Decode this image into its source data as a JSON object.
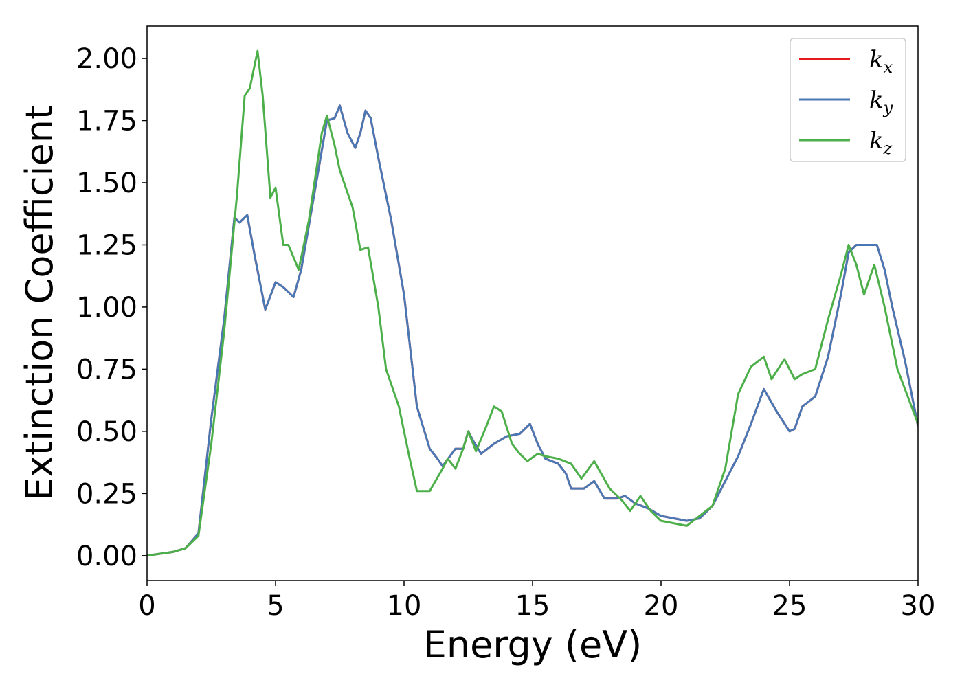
{
  "chart_data": {
    "type": "line",
    "xlabel": "Energy (eV)",
    "ylabel": "Extinction Coefficient",
    "xlim": [
      0,
      30
    ],
    "xticks": [
      0,
      5,
      10,
      15,
      20,
      25,
      30
    ],
    "ylim": [
      -0.1,
      2.13
    ],
    "yticks": [
      {
        "value": 0,
        "label": "0.00"
      },
      {
        "value": 0.25,
        "label": "0.25"
      },
      {
        "value": 0.5,
        "label": "0.50"
      },
      {
        "value": 0.75,
        "label": "0.75"
      },
      {
        "value": 1,
        "label": "1.00"
      },
      {
        "value": 1.25,
        "label": "1.25"
      },
      {
        "value": 1.5,
        "label": "1.50"
      },
      {
        "value": 1.75,
        "label": "1.75"
      },
      {
        "value": 2,
        "label": "2.00"
      }
    ],
    "legend": "upper right",
    "series": [
      {
        "name": "kx",
        "color": "#e41a1c",
        "x": [
          0,
          1,
          1.5,
          2,
          2.5,
          3,
          3.4,
          3.6,
          3.9,
          4.2,
          4.6,
          5,
          5.3,
          5.7,
          6,
          6.5,
          7,
          7.3,
          7.5,
          7.8,
          8.1,
          8.3,
          8.5,
          8.7,
          9,
          9.5,
          10,
          10.5,
          11,
          11.3,
          11.5,
          12,
          12.3,
          12.5,
          12.7,
          13,
          13.5,
          14,
          14.5,
          14.9,
          15.2,
          15.5,
          16,
          16.3,
          16.5,
          17,
          17.4,
          17.8,
          18.3,
          18.6,
          19,
          19.5,
          20,
          20.5,
          21,
          21.5,
          22,
          22.5,
          23,
          23.5,
          24,
          24.5,
          25,
          25.2,
          25.5,
          26,
          26.5,
          27,
          27.3,
          27.6,
          28,
          28.4,
          28.7,
          29,
          29.5,
          30
        ],
        "values": [
          0,
          0.015,
          0.03,
          0.09,
          0.55,
          0.95,
          1.36,
          1.34,
          1.37,
          1.2,
          0.99,
          1.1,
          1.08,
          1.04,
          1.15,
          1.45,
          1.75,
          1.76,
          1.81,
          1.7,
          1.64,
          1.7,
          1.79,
          1.76,
          1.6,
          1.35,
          1.05,
          0.6,
          0.43,
          0.39,
          0.36,
          0.43,
          0.43,
          0.5,
          0.46,
          0.41,
          0.45,
          0.48,
          0.49,
          0.53,
          0.45,
          0.39,
          0.37,
          0.33,
          0.27,
          0.27,
          0.3,
          0.23,
          0.23,
          0.24,
          0.21,
          0.19,
          0.16,
          0.15,
          0.14,
          0.15,
          0.2,
          0.3,
          0.4,
          0.53,
          0.67,
          0.58,
          0.5,
          0.51,
          0.6,
          0.64,
          0.8,
          1.05,
          1.22,
          1.25,
          1.25,
          1.25,
          1.15,
          1.0,
          0.78,
          0.52
        ]
      },
      {
        "name": "ky",
        "color": "#4a78b4",
        "x": [
          0,
          1,
          1.5,
          2,
          2.5,
          3,
          3.4,
          3.6,
          3.9,
          4.2,
          4.6,
          5,
          5.3,
          5.7,
          6,
          6.5,
          7,
          7.3,
          7.5,
          7.8,
          8.1,
          8.3,
          8.5,
          8.7,
          9,
          9.5,
          10,
          10.5,
          11,
          11.3,
          11.5,
          12,
          12.3,
          12.5,
          12.7,
          13,
          13.5,
          14,
          14.5,
          14.9,
          15.2,
          15.5,
          16,
          16.3,
          16.5,
          17,
          17.4,
          17.8,
          18.3,
          18.6,
          19,
          19.5,
          20,
          20.5,
          21,
          21.5,
          22,
          22.5,
          23,
          23.5,
          24,
          24.5,
          25,
          25.2,
          25.5,
          26,
          26.5,
          27,
          27.3,
          27.6,
          28,
          28.4,
          28.7,
          29,
          29.5,
          30
        ],
        "values": [
          0,
          0.015,
          0.03,
          0.09,
          0.55,
          0.95,
          1.36,
          1.34,
          1.37,
          1.2,
          0.99,
          1.1,
          1.08,
          1.04,
          1.15,
          1.45,
          1.75,
          1.76,
          1.81,
          1.7,
          1.64,
          1.7,
          1.79,
          1.76,
          1.6,
          1.35,
          1.05,
          0.6,
          0.43,
          0.39,
          0.36,
          0.43,
          0.43,
          0.5,
          0.46,
          0.41,
          0.45,
          0.48,
          0.49,
          0.53,
          0.45,
          0.39,
          0.37,
          0.33,
          0.27,
          0.27,
          0.3,
          0.23,
          0.23,
          0.24,
          0.21,
          0.19,
          0.16,
          0.15,
          0.14,
          0.15,
          0.2,
          0.3,
          0.4,
          0.53,
          0.67,
          0.58,
          0.5,
          0.51,
          0.6,
          0.64,
          0.8,
          1.05,
          1.22,
          1.25,
          1.25,
          1.25,
          1.15,
          1.0,
          0.78,
          0.52
        ]
      },
      {
        "name": "kz",
        "color": "#4daf4a",
        "x": [
          0,
          1,
          1.5,
          2,
          2.5,
          3,
          3.5,
          3.8,
          4,
          4.3,
          4.5,
          4.8,
          5,
          5.3,
          5.5,
          5.9,
          6.3,
          6.8,
          7,
          7.3,
          7.5,
          8,
          8.3,
          8.6,
          9,
          9.3,
          9.8,
          10.2,
          10.5,
          11,
          11.5,
          11.7,
          12,
          12.3,
          12.5,
          12.8,
          13.2,
          13.5,
          13.8,
          14.2,
          14.5,
          14.8,
          15.2,
          15.5,
          16,
          16.5,
          16.9,
          17.4,
          18,
          18.5,
          18.8,
          19.2,
          19.6,
          20,
          20.5,
          21,
          21.5,
          22,
          22.5,
          23,
          23.5,
          24,
          24.3,
          24.8,
          25.2,
          25.5,
          26,
          26.5,
          27,
          27.3,
          27.6,
          27.9,
          28.3,
          28.7,
          29.2,
          30
        ],
        "values": [
          0,
          0.015,
          0.03,
          0.08,
          0.45,
          0.9,
          1.45,
          1.85,
          1.88,
          2.03,
          1.85,
          1.44,
          1.48,
          1.25,
          1.25,
          1.15,
          1.35,
          1.7,
          1.77,
          1.65,
          1.55,
          1.4,
          1.23,
          1.24,
          1.0,
          0.75,
          0.6,
          0.4,
          0.26,
          0.26,
          0.35,
          0.39,
          0.35,
          0.43,
          0.5,
          0.42,
          0.52,
          0.6,
          0.58,
          0.45,
          0.41,
          0.38,
          0.41,
          0.4,
          0.39,
          0.37,
          0.31,
          0.38,
          0.27,
          0.22,
          0.18,
          0.24,
          0.18,
          0.14,
          0.13,
          0.12,
          0.16,
          0.2,
          0.35,
          0.65,
          0.76,
          0.8,
          0.71,
          0.79,
          0.71,
          0.73,
          0.75,
          0.95,
          1.13,
          1.25,
          1.17,
          1.05,
          1.17,
          1.0,
          0.75,
          0.53
        ]
      }
    ]
  }
}
